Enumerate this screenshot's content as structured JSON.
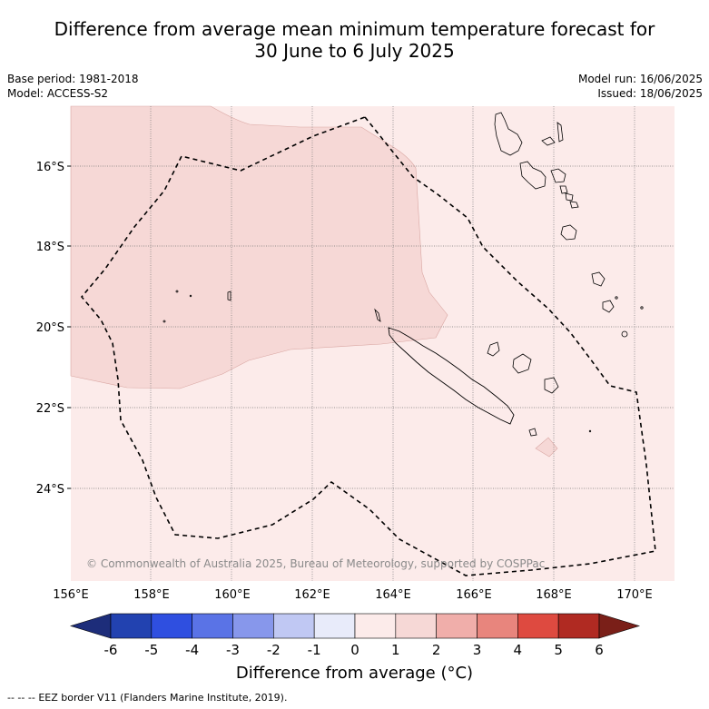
{
  "title": {
    "line1": "Difference from average mean minimum temperature forecast for",
    "line2": "30 June to 6 July 2025"
  },
  "meta_left": {
    "base_period": "Base period: 1981-2018",
    "model": "Model: ACCESS-S2"
  },
  "meta_right": {
    "model_run": "Model run: 16/06/2025",
    "issued": "Issued: 18/06/2025"
  },
  "map": {
    "lat_labels": [
      "16°S",
      "18°S",
      "20°S",
      "22°S",
      "24°S"
    ],
    "lon_labels": [
      "156°E",
      "158°E",
      "160°E",
      "162°E",
      "164°E",
      "166°E",
      "168°E",
      "170°E"
    ],
    "copyright": "© Commonwealth of Australia 2025, Bureau of Meteorology, supported by COSPPac",
    "colors": {
      "background_anomaly": "#fcebea",
      "patch_anomaly": "#f6d8d6",
      "ocean_grid": "#777777"
    }
  },
  "colorbar": {
    "ticks": [
      "-6",
      "-5",
      "-4",
      "-3",
      "-2",
      "-1",
      "0",
      "1",
      "2",
      "3",
      "4",
      "5",
      "6"
    ],
    "colors": [
      "#1d2d7a",
      "#2242b0",
      "#2f4fe0",
      "#5a73e6",
      "#8797eb",
      "#c0c8f3",
      "#e8ebfa",
      "#fcebea",
      "#f6d8d6",
      "#f0aeaa",
      "#e8857d",
      "#de4a40",
      "#b02a22",
      "#7a1f18"
    ],
    "label": "Difference from average (°C)"
  },
  "footer": {
    "legend_symbol": "-- -- --",
    "text": "EEZ border V11 (Flanders Marine Institute, 2019)."
  }
}
